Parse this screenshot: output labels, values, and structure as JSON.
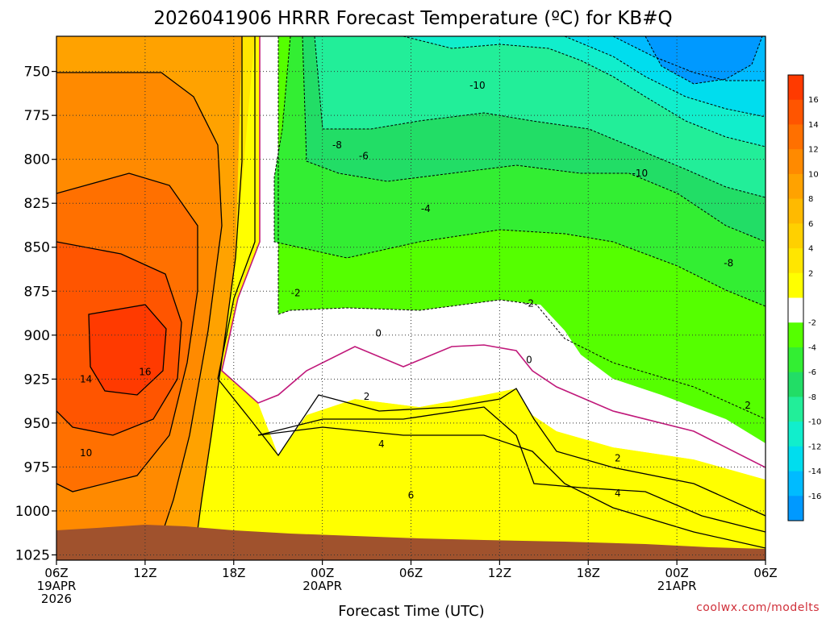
{
  "chart_data": {
    "type": "heatmap",
    "title": "2026041906 HRRR Forecast Temperature (ºC) for KB#Q",
    "xlabel": "Forecast Time (UTC)",
    "ylabel": "",
    "credit": "coolwx.com/modelts",
    "x_range_hours": [
      0,
      48
    ],
    "y_range_hPa": [
      730,
      1028
    ],
    "y_scale": "linear-reversed",
    "y_ticks": [
      750,
      775,
      800,
      825,
      850,
      875,
      900,
      925,
      950,
      975,
      1000,
      1025
    ],
    "x_ticks": [
      {
        "hour": 0,
        "lines": [
          "06Z",
          "19APR",
          "2026"
        ]
      },
      {
        "hour": 6,
        "lines": [
          "12Z"
        ]
      },
      {
        "hour": 12,
        "lines": [
          "18Z"
        ]
      },
      {
        "hour": 18,
        "lines": [
          "00Z",
          "20APR"
        ]
      },
      {
        "hour": 24,
        "lines": [
          "06Z"
        ]
      },
      {
        "hour": 30,
        "lines": [
          "12Z"
        ]
      },
      {
        "hour": 36,
        "lines": [
          "18Z"
        ]
      },
      {
        "hour": 42,
        "lines": [
          "00Z",
          "21APR"
        ]
      },
      {
        "hour": 48,
        "lines": [
          "06Z"
        ]
      }
    ],
    "grid": true,
    "colorbar": {
      "placement": "right",
      "labels": [
        "16",
        "14",
        "12",
        "10",
        "8",
        "6",
        "4",
        "2",
        "-2",
        "-4",
        "-6",
        "-8",
        "-10",
        "-12",
        "-14",
        "-16"
      ],
      "colors": [
        "#ff3a00",
        "#ff5500",
        "#ff7000",
        "#ff8a00",
        "#ffa200",
        "#ffba00",
        "#ffd000",
        "#ffe600",
        "#ffff00",
        "#ffffff",
        "#55ff00",
        "#33ee33",
        "#22dd66",
        "#22ee99",
        "#11eecc",
        "#00ddee",
        "#00bbff",
        "#0099ff"
      ]
    },
    "terrain_color": "#a0522d",
    "contour_labels": [
      {
        "text": "-10",
        "hour": 28.5,
        "p": 758
      },
      {
        "text": "-10",
        "hour": 39.5,
        "p": 808
      },
      {
        "text": "-8",
        "hour": 19.0,
        "p": 792
      },
      {
        "text": "-8",
        "hour": 45.5,
        "p": 859
      },
      {
        "text": "-6",
        "hour": 20.8,
        "p": 798
      },
      {
        "text": "-4",
        "hour": 25.0,
        "p": 828
      },
      {
        "text": "-2",
        "hour": 16.2,
        "p": 876
      },
      {
        "text": "-2",
        "hour": 32.0,
        "p": 882
      },
      {
        "text": "0",
        "hour": 21.8,
        "p": 899
      },
      {
        "text": "0",
        "hour": 32.0,
        "p": 914
      },
      {
        "text": "2",
        "hour": 21.0,
        "p": 935
      },
      {
        "text": "2",
        "hour": 38.0,
        "p": 970
      },
      {
        "text": "2",
        "hour": 46.8,
        "p": 940
      },
      {
        "text": "4",
        "hour": 22.0,
        "p": 962
      },
      {
        "text": "4",
        "hour": 38.0,
        "p": 990
      },
      {
        "text": "6",
        "hour": 24.0,
        "p": 991
      },
      {
        "text": "10",
        "hour": 2.0,
        "p": 967
      },
      {
        "text": "14",
        "hour": 2.0,
        "p": 925
      },
      {
        "text": "16",
        "hour": 6.0,
        "p": 921
      }
    ]
  }
}
